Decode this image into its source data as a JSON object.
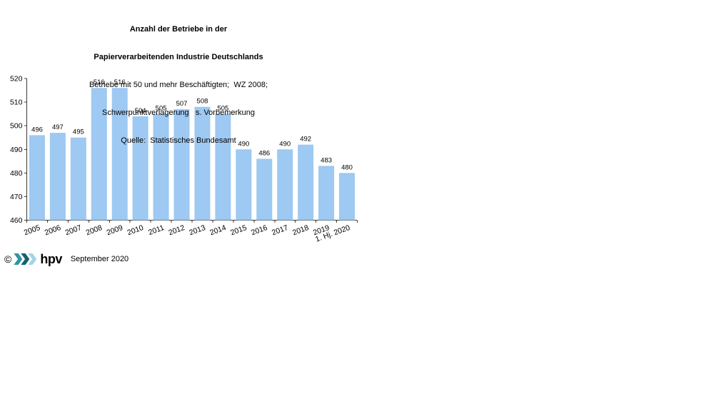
{
  "title": {
    "line1": "Anzahl der Betriebe in der",
    "line2": "Papierverarbeitenden Industrie Deutschlands",
    "line3": "Betriebe mit 50 und mehr Beschäftigten;  WZ 2008;",
    "line4": "Schwerpunktverlagerung   s. Vorbemerkung",
    "line5": "Quelle:  Statistisches Bundesamt"
  },
  "chart_data": {
    "type": "bar",
    "title": "Anzahl der Betriebe in der Papierverarbeitenden Industrie Deutschlands",
    "subtitle": "Betriebe mit 50 und mehr Beschäftigten; WZ 2008; Schwerpunktverlagerung s. Vorbemerkung",
    "source": "Quelle: Statistisches Bundesamt",
    "categories": [
      "2005",
      "2006",
      "2007",
      "2008",
      "2009",
      "2010",
      "2011",
      "2012",
      "2013",
      "2014",
      "2015",
      "2016",
      "2017",
      "2018",
      "2019",
      "1. Hj. 2020"
    ],
    "values": [
      496,
      497,
      495,
      516,
      516,
      504,
      505,
      507,
      508,
      505,
      490,
      486,
      490,
      492,
      483,
      480
    ],
    "xlabel": "",
    "ylabel": "",
    "ylim": [
      460,
      520
    ],
    "yticks": [
      460,
      470,
      480,
      490,
      500,
      510,
      520
    ],
    "grid": false,
    "legend": "none",
    "value_labels": true,
    "bar_color": "#9DC9F2",
    "axis_color": "#3A3A3A",
    "text_color": "#000000"
  },
  "footer": {
    "copyright": "©",
    "logo_text": "hpv",
    "date": "September 2020",
    "chevron_colors": [
      "#2E96A3",
      "#15616F",
      "#A6D3E3"
    ]
  }
}
